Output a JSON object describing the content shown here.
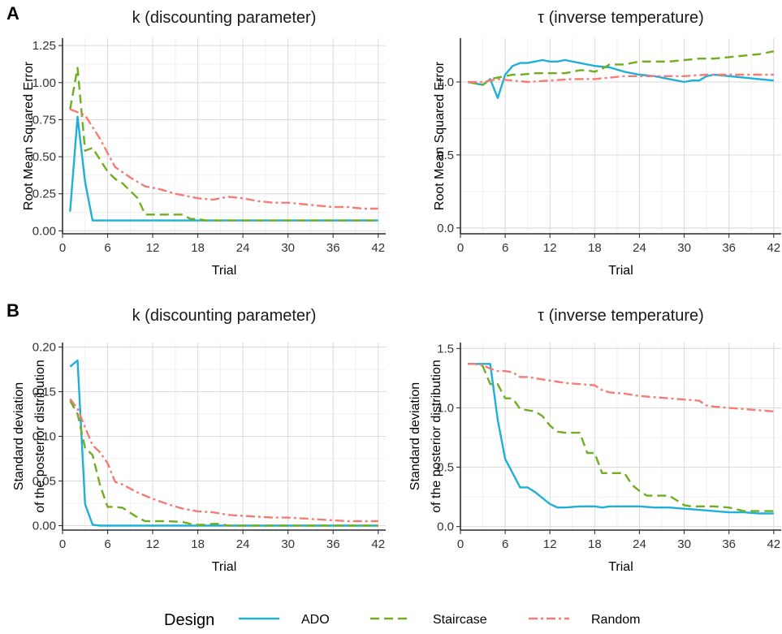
{
  "legend": {
    "title": "Design",
    "items": [
      {
        "name": "ADO",
        "color": "#1FAFD9",
        "dash": "solid"
      },
      {
        "name": "Staircase",
        "color": "#6FAF1F",
        "dash": "dashed"
      },
      {
        "name": "Random",
        "color": "#F47C74",
        "dash": "dashdot"
      }
    ]
  },
  "panel_labels": [
    "A",
    "B"
  ],
  "chart_data": [
    {
      "type": "line",
      "title": "k (discounting parameter)",
      "xlabel": "Trial",
      "ylabel": [
        "Root Mean Squared Error"
      ],
      "xlim": [
        0,
        43
      ],
      "ylim": [
        -0.02,
        1.3
      ],
      "xticks": [
        0,
        6,
        12,
        18,
        24,
        30,
        36,
        42
      ],
      "yticks": [
        0.0,
        0.25,
        0.5,
        0.75,
        1.0,
        1.25
      ],
      "ytick_labels": [
        "0.00",
        "0.25",
        "0.50",
        "0.75",
        "1.00",
        "1.25"
      ],
      "grid": true,
      "series": [
        {
          "name": "ADO",
          "x": [
            1,
            2,
            3,
            4,
            6,
            10,
            15,
            20,
            30,
            42
          ],
          "y": [
            0.13,
            0.77,
            0.33,
            0.07,
            0.07,
            0.07,
            0.07,
            0.07,
            0.07,
            0.07
          ]
        },
        {
          "name": "Staircase",
          "x": [
            1,
            2,
            3,
            4,
            6,
            7,
            8,
            9,
            10,
            11,
            13,
            15,
            16,
            17,
            18,
            19,
            20,
            22,
            42
          ],
          "y": [
            0.82,
            1.1,
            0.54,
            0.56,
            0.4,
            0.35,
            0.32,
            0.27,
            0.22,
            0.11,
            0.11,
            0.11,
            0.11,
            0.08,
            0.08,
            0.07,
            0.07,
            0.07,
            0.07
          ]
        },
        {
          "name": "Random",
          "x": [
            1,
            3,
            5,
            7,
            9,
            11,
            13,
            15,
            18,
            20,
            22,
            24,
            26,
            28,
            30,
            32,
            34,
            36,
            38,
            40,
            42
          ],
          "y": [
            0.82,
            0.78,
            0.62,
            0.43,
            0.36,
            0.3,
            0.28,
            0.25,
            0.22,
            0.21,
            0.23,
            0.22,
            0.2,
            0.19,
            0.19,
            0.18,
            0.17,
            0.16,
            0.16,
            0.15,
            0.15
          ]
        }
      ]
    },
    {
      "type": "line",
      "title": "τ (inverse temperature)",
      "xlabel": "Trial",
      "ylabel": [
        "Root Mean Squared Error"
      ],
      "xlim": [
        0,
        43
      ],
      "ylim": [
        -0.04,
        1.3
      ],
      "xticks": [
        0,
        6,
        12,
        18,
        24,
        30,
        36,
        42
      ],
      "yticks": [
        0.0,
        0.5,
        1.0
      ],
      "ytick_labels": [
        "0.0",
        "0.5",
        "1.0"
      ],
      "grid": true,
      "series": [
        {
          "name": "ADO",
          "x": [
            1,
            2,
            3,
            4,
            5,
            6,
            7,
            8,
            9,
            10,
            11,
            12,
            13,
            14,
            16,
            18,
            20,
            22,
            24,
            26,
            28,
            30,
            31,
            32,
            33,
            34,
            36,
            38,
            40,
            42
          ],
          "y": [
            1.0,
            0.99,
            0.98,
            1.02,
            0.89,
            1.05,
            1.11,
            1.13,
            1.13,
            1.14,
            1.15,
            1.14,
            1.14,
            1.15,
            1.13,
            1.11,
            1.1,
            1.07,
            1.05,
            1.04,
            1.02,
            1.0,
            1.01,
            1.01,
            1.04,
            1.05,
            1.04,
            1.03,
            1.02,
            1.01
          ]
        },
        {
          "name": "Staircase",
          "x": [
            1,
            2,
            3,
            4,
            5,
            6,
            7,
            8,
            10,
            12,
            14,
            16,
            17,
            18,
            19,
            20,
            22,
            23,
            24,
            26,
            28,
            30,
            32,
            34,
            36,
            38,
            40,
            42
          ],
          "y": [
            1.0,
            0.99,
            0.98,
            1.02,
            1.03,
            1.04,
            1.05,
            1.05,
            1.06,
            1.06,
            1.06,
            1.08,
            1.08,
            1.07,
            1.09,
            1.12,
            1.12,
            1.13,
            1.14,
            1.14,
            1.14,
            1.15,
            1.16,
            1.16,
            1.17,
            1.18,
            1.19,
            1.21
          ]
        },
        {
          "name": "Random",
          "x": [
            1,
            3,
            5,
            7,
            9,
            12,
            15,
            18,
            20,
            22,
            24,
            27,
            30,
            33,
            36,
            39,
            42
          ],
          "y": [
            1.0,
            1.0,
            1.02,
            1.01,
            1.0,
            1.01,
            1.02,
            1.02,
            1.03,
            1.04,
            1.04,
            1.04,
            1.04,
            1.05,
            1.05,
            1.05,
            1.05
          ]
        }
      ]
    },
    {
      "type": "line",
      "title": "k (discounting parameter)",
      "xlabel": "Trial",
      "ylabel": [
        "Standard deviation",
        "of the posterior distribution"
      ],
      "xlim": [
        0,
        43
      ],
      "ylim": [
        -0.005,
        0.205
      ],
      "xticks": [
        0,
        6,
        12,
        18,
        24,
        30,
        36,
        42
      ],
      "yticks": [
        0.0,
        0.05,
        0.1,
        0.15,
        0.2
      ],
      "ytick_labels": [
        "0.00",
        "0.05",
        "0.10",
        "0.15",
        "0.20"
      ],
      "grid": true,
      "series": [
        {
          "name": "ADO",
          "x": [
            1,
            2,
            3,
            4,
            5,
            10,
            20,
            42
          ],
          "y": [
            0.178,
            0.185,
            0.024,
            0.001,
            0.0,
            0.0,
            0.0,
            0.0
          ]
        },
        {
          "name": "Staircase",
          "x": [
            1,
            2,
            3,
            4,
            5,
            6,
            7,
            8,
            10,
            11,
            12,
            14,
            16,
            17,
            18,
            19,
            20,
            21,
            22,
            42
          ],
          "y": [
            0.14,
            0.125,
            0.087,
            0.079,
            0.045,
            0.021,
            0.021,
            0.02,
            0.009,
            0.005,
            0.005,
            0.005,
            0.004,
            0.002,
            0.001,
            0.001,
            0.002,
            0.002,
            0.0,
            0.0
          ]
        },
        {
          "name": "Random",
          "x": [
            1,
            2,
            3,
            4,
            5,
            6,
            7,
            8,
            10,
            12,
            14,
            16,
            18,
            20,
            22,
            24,
            26,
            28,
            30,
            32,
            34,
            36,
            38,
            40,
            42
          ],
          "y": [
            0.142,
            0.131,
            0.11,
            0.09,
            0.082,
            0.07,
            0.049,
            0.046,
            0.037,
            0.03,
            0.024,
            0.019,
            0.016,
            0.015,
            0.012,
            0.011,
            0.01,
            0.009,
            0.009,
            0.008,
            0.007,
            0.006,
            0.005,
            0.005,
            0.005
          ]
        }
      ]
    },
    {
      "type": "line",
      "title": "τ (inverse temperature)",
      "xlabel": "Trial",
      "ylabel": [
        "Standard deviation",
        "of the posterior distribution"
      ],
      "xlim": [
        0,
        43
      ],
      "ylim": [
        -0.03,
        1.55
      ],
      "xticks": [
        0,
        6,
        12,
        18,
        24,
        30,
        36,
        42
      ],
      "yticks": [
        0.0,
        0.5,
        1.0,
        1.5
      ],
      "ytick_labels": [
        "0.0",
        "0.5",
        "1.0",
        "1.5"
      ],
      "grid": true,
      "series": [
        {
          "name": "ADO",
          "x": [
            1,
            2,
            3,
            4,
            5,
            6,
            7,
            8,
            9,
            10,
            11,
            12,
            13,
            14,
            16,
            18,
            19,
            20,
            22,
            24,
            26,
            28,
            30,
            32,
            34,
            36,
            38,
            40,
            42
          ],
          "y": [
            1.37,
            1.37,
            1.37,
            1.37,
            0.9,
            0.57,
            0.45,
            0.33,
            0.33,
            0.29,
            0.24,
            0.19,
            0.16,
            0.16,
            0.17,
            0.17,
            0.16,
            0.17,
            0.17,
            0.17,
            0.16,
            0.16,
            0.15,
            0.14,
            0.13,
            0.12,
            0.12,
            0.11,
            0.11
          ]
        },
        {
          "name": "Staircase",
          "x": [
            1,
            2,
            3,
            4,
            5,
            6,
            7,
            8,
            9,
            10,
            11,
            12,
            13,
            14,
            15,
            16,
            17,
            18,
            19,
            20,
            21,
            22,
            23,
            24,
            25,
            26,
            27,
            28,
            29,
            30,
            31,
            32,
            34,
            36,
            38,
            40,
            42
          ],
          "y": [
            1.37,
            1.37,
            1.35,
            1.2,
            1.2,
            1.08,
            1.08,
            0.99,
            0.98,
            0.97,
            0.93,
            0.85,
            0.8,
            0.79,
            0.79,
            0.79,
            0.62,
            0.62,
            0.45,
            0.45,
            0.45,
            0.45,
            0.35,
            0.3,
            0.26,
            0.26,
            0.26,
            0.26,
            0.22,
            0.18,
            0.17,
            0.17,
            0.17,
            0.16,
            0.13,
            0.13,
            0.13
          ]
        },
        {
          "name": "Random",
          "x": [
            1,
            2,
            3,
            4,
            5,
            6,
            7,
            8,
            9,
            10,
            12,
            14,
            16,
            18,
            19,
            20,
            22,
            24,
            26,
            28,
            30,
            32,
            33,
            34,
            36,
            38,
            40,
            42
          ],
          "y": [
            1.37,
            1.37,
            1.36,
            1.33,
            1.31,
            1.31,
            1.3,
            1.26,
            1.26,
            1.25,
            1.23,
            1.21,
            1.2,
            1.19,
            1.15,
            1.13,
            1.12,
            1.1,
            1.09,
            1.08,
            1.07,
            1.06,
            1.02,
            1.01,
            1.0,
            0.99,
            0.98,
            0.97
          ]
        }
      ]
    }
  ]
}
